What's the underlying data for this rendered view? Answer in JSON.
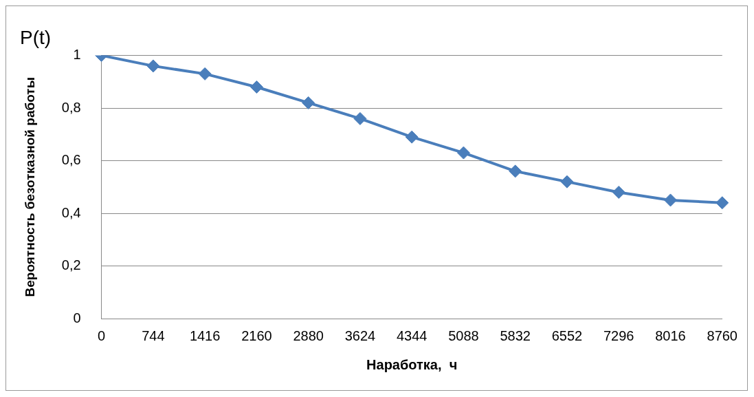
{
  "chart_data": {
    "type": "line",
    "title": "P(t)",
    "xlabel": "Наработка,  ч",
    "ylabel": "Вероятность безотказной работы",
    "categories": [
      "0",
      "744",
      "1416",
      "2160",
      "2880",
      "3624",
      "4344",
      "5088",
      "5832",
      "6552",
      "7296",
      "8016",
      "8760"
    ],
    "series": [
      {
        "color": "#4a7ebb",
        "values": [
          1.0,
          0.96,
          0.93,
          0.88,
          0.82,
          0.76,
          0.69,
          0.63,
          0.56,
          0.52,
          0.48,
          0.45,
          0.44
        ]
      }
    ],
    "ylim": [
      0,
      1
    ],
    "yticks": [
      {
        "value": 0,
        "label": "0"
      },
      {
        "value": 0.2,
        "label": "0,2"
      },
      {
        "value": 0.4,
        "label": "0,4"
      },
      {
        "value": 0.6,
        "label": "0,6"
      },
      {
        "value": 0.8,
        "label": "0,8"
      },
      {
        "value": 1,
        "label": "1"
      }
    ],
    "grid": "y",
    "legend": false,
    "marker": "diamond",
    "line_style": "solid"
  }
}
